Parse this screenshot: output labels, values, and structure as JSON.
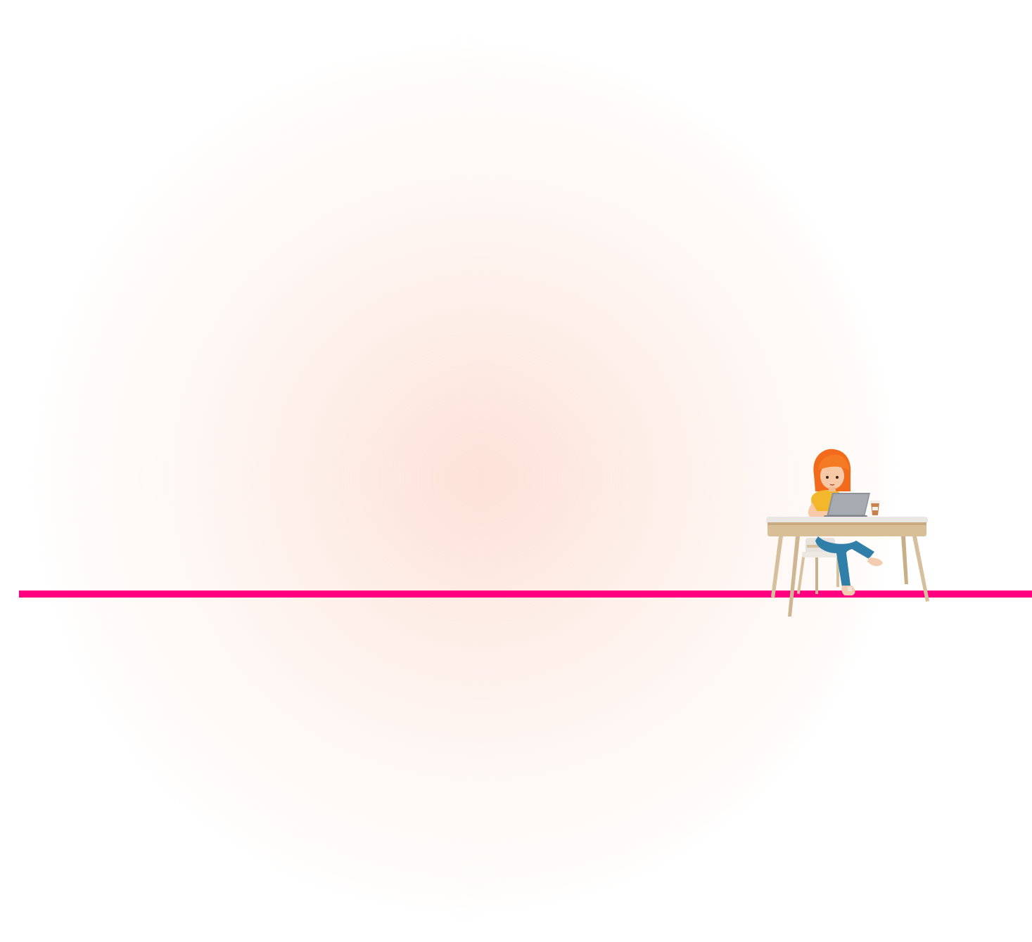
{
  "colors": {
    "background": "#ffffff",
    "glow": "#fde0d6",
    "accent_line": "#ff0080"
  },
  "illustration": {
    "icon": "woman-at-desk-with-laptop-illustration"
  }
}
